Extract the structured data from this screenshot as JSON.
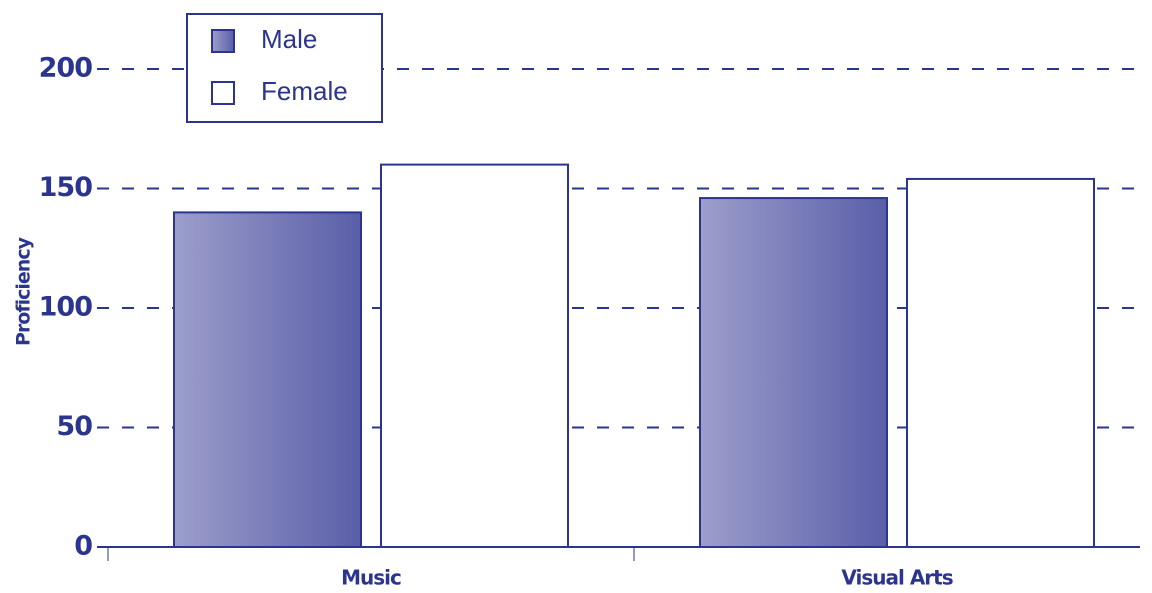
{
  "chart_data": {
    "type": "bar",
    "y_label": "Proficiency",
    "categories": [
      "Music",
      "Visual Arts"
    ],
    "series": [
      {
        "name": "Male",
        "color": "#5a5ea8",
        "values": [
          140,
          146
        ]
      },
      {
        "name": "Female",
        "color": "#ffffff",
        "values": [
          160,
          154
        ]
      }
    ],
    "ylim": [
      0,
      200
    ],
    "yticks": [
      0,
      50,
      100,
      150,
      200
    ],
    "grid": true,
    "legend_position": "top-left"
  }
}
